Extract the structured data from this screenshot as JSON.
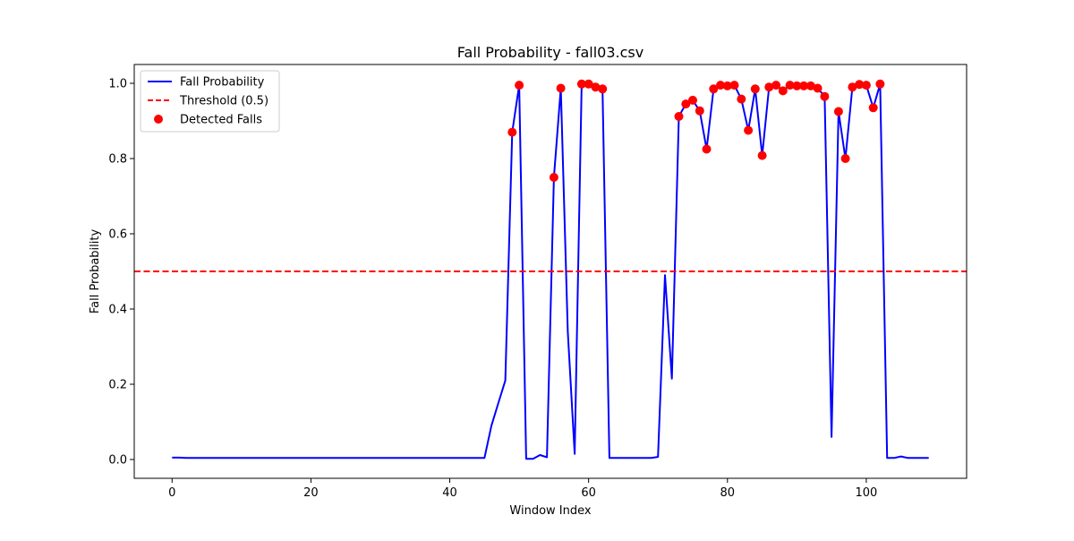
{
  "chart_data": {
    "type": "line",
    "title": "Fall Probability - fall03.csv",
    "xlabel": "Window Index",
    "ylabel": "Fall Probability",
    "xlim": [
      -5.45,
      114.45
    ],
    "ylim": [
      -0.05,
      1.05
    ],
    "xticks": [
      0,
      20,
      40,
      60,
      80,
      100
    ],
    "yticks": [
      0.0,
      0.2,
      0.4,
      0.6,
      0.8,
      1.0
    ],
    "xtick_labels": [
      "0",
      "20",
      "40",
      "60",
      "80",
      "100"
    ],
    "ytick_labels": [
      "0.0",
      "0.2",
      "0.4",
      "0.6",
      "0.8",
      "1.0"
    ],
    "legend_position": "upper-left",
    "threshold": 0.5,
    "colors": {
      "line": "#0000ff",
      "threshold": "#ff0000",
      "points": "#ff0000"
    },
    "series": [
      {
        "name": "Fall Probability",
        "kind": "line",
        "x": [
          0,
          1,
          2,
          3,
          4,
          5,
          6,
          7,
          8,
          9,
          10,
          11,
          12,
          13,
          14,
          15,
          16,
          17,
          18,
          19,
          20,
          21,
          22,
          23,
          24,
          25,
          26,
          27,
          28,
          29,
          30,
          31,
          32,
          33,
          34,
          35,
          36,
          37,
          38,
          39,
          40,
          41,
          42,
          43,
          44,
          45,
          46,
          47,
          48,
          49,
          50,
          51,
          52,
          53,
          54,
          55,
          56,
          57,
          58,
          59,
          60,
          61,
          62,
          63,
          64,
          65,
          66,
          67,
          68,
          69,
          70,
          71,
          72,
          73,
          74,
          75,
          76,
          77,
          78,
          79,
          80,
          81,
          82,
          83,
          84,
          85,
          86,
          87,
          88,
          89,
          90,
          91,
          92,
          93,
          94,
          95,
          96,
          97,
          98,
          99,
          100,
          101,
          102,
          103,
          104,
          105,
          106,
          107,
          108,
          109
        ],
        "y": [
          0.005,
          0.005,
          0.004,
          0.004,
          0.004,
          0.004,
          0.004,
          0.004,
          0.004,
          0.004,
          0.004,
          0.004,
          0.004,
          0.004,
          0.004,
          0.004,
          0.004,
          0.004,
          0.004,
          0.004,
          0.004,
          0.004,
          0.004,
          0.004,
          0.004,
          0.004,
          0.004,
          0.004,
          0.004,
          0.004,
          0.004,
          0.004,
          0.004,
          0.004,
          0.004,
          0.004,
          0.004,
          0.004,
          0.004,
          0.004,
          0.004,
          0.004,
          0.004,
          0.004,
          0.004,
          0.004,
          0.09,
          0.15,
          0.21,
          0.87,
          0.995,
          0.002,
          0.002,
          0.012,
          0.006,
          0.75,
          0.987,
          0.34,
          0.015,
          0.998,
          0.998,
          0.99,
          0.985,
          0.004,
          0.004,
          0.004,
          0.004,
          0.004,
          0.004,
          0.004,
          0.007,
          0.49,
          0.215,
          0.912,
          0.945,
          0.955,
          0.927,
          0.825,
          0.985,
          0.995,
          0.993,
          0.995,
          0.958,
          0.875,
          0.985,
          0.808,
          0.99,
          0.995,
          0.98,
          0.995,
          0.993,
          0.993,
          0.993,
          0.987,
          0.965,
          0.06,
          0.925,
          0.8,
          0.99,
          0.997,
          0.995,
          0.935,
          0.998,
          0.004,
          0.004,
          0.008,
          0.004,
          0.004,
          0.004,
          0.004
        ]
      },
      {
        "name": "Threshold (0.5)",
        "kind": "hline",
        "y": 0.5
      },
      {
        "name": "Detected Falls",
        "kind": "scatter",
        "x": [
          49,
          50,
          55,
          56,
          59,
          60,
          61,
          62,
          73,
          74,
          75,
          76,
          77,
          78,
          79,
          80,
          81,
          82,
          83,
          84,
          85,
          86,
          87,
          88,
          89,
          90,
          91,
          92,
          93,
          94,
          96,
          97,
          98,
          99,
          100,
          101,
          102
        ],
        "y": [
          0.87,
          0.995,
          0.75,
          0.987,
          0.998,
          0.998,
          0.99,
          0.985,
          0.912,
          0.945,
          0.955,
          0.927,
          0.825,
          0.985,
          0.995,
          0.993,
          0.995,
          0.958,
          0.875,
          0.985,
          0.808,
          0.99,
          0.995,
          0.98,
          0.995,
          0.993,
          0.993,
          0.993,
          0.987,
          0.965,
          0.925,
          0.8,
          0.99,
          0.997,
          0.995,
          0.935,
          0.998
        ]
      }
    ]
  }
}
